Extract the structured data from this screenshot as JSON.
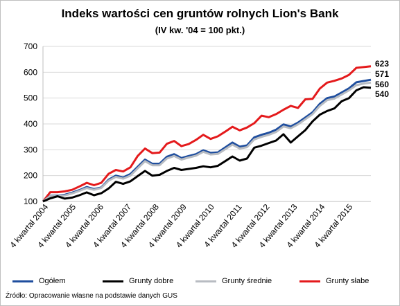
{
  "chart_data": {
    "type": "line",
    "title": "Indeks wartości cen gruntów rolnych Lion's Bank",
    "subtitle": "(IV kw. '04 = 100 pkt.)",
    "ylim": [
      100,
      700
    ],
    "yticks": [
      100,
      200,
      300,
      400,
      500,
      600,
      700
    ],
    "xtick_labels": [
      "4 kwartał 2004",
      "4 kwartał 2005",
      "4 kwartał 2006",
      "4 kwartał 2007",
      "4 kwartał 2008",
      "4 kwartał 2009",
      "4 kwartał 2010",
      "4 kwartał 2011",
      "4 kwartał 2012",
      "4 kwartał 2013",
      "4 kwartał 2014",
      "4 kwartał 2015"
    ],
    "grid": true,
    "legend_position": "bottom",
    "source": "Źródło: Opracowanie własne na podstawie danych GUS",
    "series": [
      {
        "name": "Grunty słabe",
        "color": "#e41a1c",
        "end_label": "623",
        "values": [
          100,
          136,
          136,
          139,
          145,
          158,
          172,
          163,
          172,
          207,
          222,
          216,
          232,
          276,
          305,
          287,
          289,
          323,
          334,
          314,
          322,
          338,
          358,
          342,
          352,
          370,
          389,
          375,
          386,
          403,
          432,
          426,
          438,
          455,
          470,
          462,
          495,
          497,
          537,
          560,
          567,
          576,
          590,
          617,
          620,
          623
        ]
      },
      {
        "name": "Ogółem",
        "color": "#1f4e9e",
        "end_label": "571",
        "values": [
          100,
          122,
          122,
          126,
          134,
          144,
          156,
          148,
          154,
          184,
          200,
          193,
          206,
          234,
          262,
          246,
          246,
          273,
          283,
          268,
          276,
          283,
          298,
          288,
          290,
          309,
          328,
          312,
          317,
          348,
          358,
          366,
          378,
          398,
          390,
          405,
          425,
          445,
          478,
          500,
          506,
          522,
          538,
          561,
          566,
          571
        ]
      },
      {
        "name": "Grunty średnie",
        "color": "#b8bcc2",
        "end_label": "560",
        "values": [
          100,
          121,
          120,
          123,
          131,
          141,
          152,
          145,
          152,
          180,
          195,
          188,
          200,
          228,
          256,
          240,
          240,
          266,
          276,
          262,
          270,
          277,
          292,
          282,
          284,
          302,
          320,
          305,
          310,
          340,
          350,
          358,
          369,
          390,
          383,
          398,
          418,
          438,
          470,
          492,
          498,
          514,
          530,
          550,
          556,
          560
        ]
      },
      {
        "name": "Grunty dobre",
        "color": "#000000",
        "end_label": "540",
        "values": [
          100,
          112,
          120,
          111,
          115,
          124,
          135,
          124,
          132,
          150,
          176,
          168,
          178,
          198,
          218,
          200,
          203,
          218,
          230,
          222,
          226,
          230,
          236,
          232,
          238,
          256,
          274,
          258,
          266,
          308,
          316,
          326,
          336,
          360,
          328,
          352,
          376,
          410,
          436,
          450,
          460,
          488,
          500,
          530,
          542,
          540
        ]
      }
    ],
    "legend_order": [
      "Ogółem",
      "Grunty dobre",
      "Grunty średnie",
      "Grunty słabe"
    ]
  }
}
